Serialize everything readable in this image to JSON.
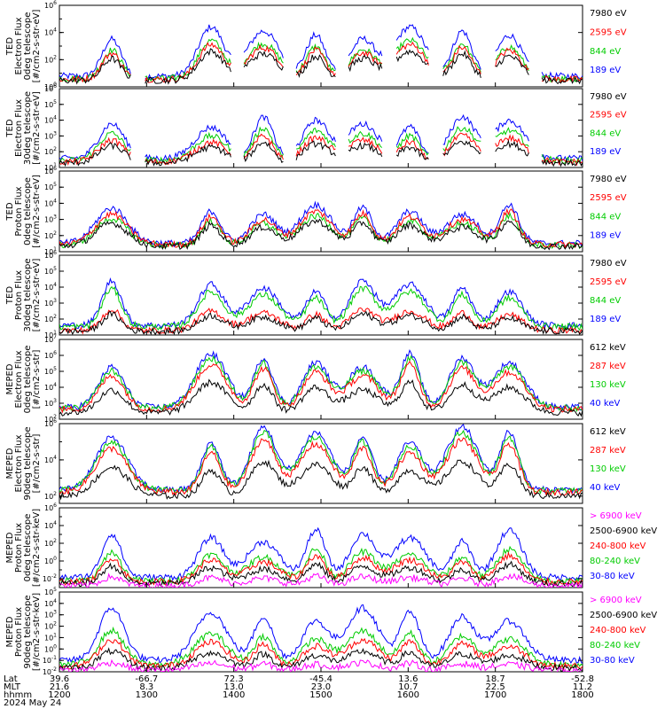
{
  "chart_data": {
    "type": "line",
    "colors": {
      "black": "#000000",
      "red": "#ff0000",
      "green": "#00cc00",
      "blue": "#0000ff",
      "magenta": "#ff00ff"
    },
    "panels": [
      {
        "ylabel_lines": [
          "TED",
          "Electron Flux",
          "0deg telescope",
          "[#/cm2-s-str-eV]"
        ],
        "ylim_log10": [
          0,
          6
        ],
        "ticks": [
          "10^0",
          "10^2",
          "10^4",
          "10^6"
        ],
        "legend": [
          {
            "name": "7980 eV",
            "color": "black"
          },
          {
            "name": "2595 eV",
            "color": "red"
          },
          {
            "name": "844 eV",
            "color": "green"
          },
          {
            "name": "189 eV",
            "color": "blue"
          }
        ],
        "series_peaks_log10": [
          2.6,
          3.1,
          3.4,
          4.4
        ]
      },
      {
        "ylabel_lines": [
          "TED",
          "Electron Flux",
          "30deg telescope",
          "[#/cm2-s-str-eV]"
        ],
        "ylim_log10": [
          1,
          6
        ],
        "ticks": [
          "10^1",
          "10^2",
          "10^3",
          "10^4",
          "10^5",
          "10^6"
        ],
        "legend": [
          {
            "name": "7980 eV",
            "color": "black"
          },
          {
            "name": "2595 eV",
            "color": "red"
          },
          {
            "name": "844 eV",
            "color": "green"
          },
          {
            "name": "189 eV",
            "color": "blue"
          }
        ],
        "series_peaks_log10": [
          2.6,
          3.0,
          3.5,
          4.2
        ]
      },
      {
        "ylabel_lines": [
          "TED",
          "Proton Flux",
          "0deg telescope",
          "[#/cm2-s-str-eV]"
        ],
        "ylim_log10": [
          1,
          6
        ],
        "ticks": [
          "10^1",
          "10^2",
          "10^3",
          "10^4",
          "10^5",
          "10^6"
        ],
        "legend": [
          {
            "name": "7980 eV",
            "color": "black"
          },
          {
            "name": "2595 eV",
            "color": "red"
          },
          {
            "name": "844 eV",
            "color": "green"
          },
          {
            "name": "189 eV",
            "color": "blue"
          }
        ],
        "series_peaks_log10": [
          2.9,
          3.5,
          3.2,
          3.9
        ]
      },
      {
        "ylabel_lines": [
          "TED",
          "Proton Flux",
          "30deg telescope",
          "[#/cm2-s-str-eV]"
        ],
        "ylim_log10": [
          1,
          6
        ],
        "ticks": [
          "10^1",
          "10^2",
          "10^3",
          "10^4",
          "10^5",
          "10^6"
        ],
        "legend": [
          {
            "name": "7980 eV",
            "color": "black"
          },
          {
            "name": "2595 eV",
            "color": "red"
          },
          {
            "name": "844 eV",
            "color": "green"
          },
          {
            "name": "189 eV",
            "color": "blue"
          }
        ],
        "series_peaks_log10": [
          2.3,
          2.6,
          3.9,
          4.4
        ]
      },
      {
        "ylabel_lines": [
          "MEPED",
          "Electron Flux",
          "0deg telescope",
          "[#/cm2-s-str]"
        ],
        "ylim_log10": [
          2,
          7
        ],
        "ticks": [
          "10^2",
          "10^3",
          "10^4",
          "10^5",
          "10^6",
          "10^7"
        ],
        "legend": [
          {
            "name": "612 keV",
            "color": "black"
          },
          {
            "name": "287 keV",
            "color": "red"
          },
          {
            "name": "130 keV",
            "color": "green"
          },
          {
            "name": "40 keV",
            "color": "blue"
          }
        ],
        "series_peaks_log10": [
          4.3,
          5.4,
          5.8,
          6.1
        ]
      },
      {
        "ylabel_lines": [
          "MEPED",
          "Electron Flux",
          "90deg telescope",
          "[#/cm2-s-str]"
        ],
        "ylim_log10": [
          1.6,
          6
        ],
        "ticks": [
          "10^2",
          "10^4",
          "10^6"
        ],
        "legend": [
          {
            "name": "612 keV",
            "color": "black"
          },
          {
            "name": "287 keV",
            "color": "red"
          },
          {
            "name": "130 keV",
            "color": "green"
          },
          {
            "name": "40 keV",
            "color": "blue"
          }
        ],
        "series_peaks_log10": [
          3.9,
          5.1,
          5.5,
          5.8
        ]
      },
      {
        "ylabel_lines": [
          "MEPED",
          "Proton Flux",
          "0deg telescope",
          "[#/cm2-s-str-keV]"
        ],
        "ylim_log10": [
          -3,
          6
        ],
        "ticks": [
          "10^-2",
          "10^0",
          "10^2",
          "10^4",
          "10^6"
        ],
        "legend": [
          {
            "name": "> 6900 keV",
            "color": "magenta"
          },
          {
            "name": "2500-6900 keV",
            "color": "black"
          },
          {
            "name": "240-800 keV",
            "color": "red"
          },
          {
            "name": "80-240 keV",
            "color": "green"
          },
          {
            "name": "30-80 keV",
            "color": "blue"
          }
        ],
        "series_peaks_log10": [
          -1.7,
          -0.4,
          0.6,
          1.3,
          3.5
        ]
      },
      {
        "ylabel_lines": [
          "MEPED",
          "Proton Flux",
          "90deg telescope",
          "[#/cm2-s-str-keV]"
        ],
        "ylim_log10": [
          -2,
          5
        ],
        "ticks": [
          "10^-2",
          "10^-1",
          "10^0",
          "10^1",
          "10^2",
          "10^3",
          "10^4",
          "10^5"
        ],
        "legend": [
          {
            "name": "> 6900 keV",
            "color": "magenta"
          },
          {
            "name": "2500-6900 keV",
            "color": "black"
          },
          {
            "name": "240-800 keV",
            "color": "red"
          },
          {
            "name": "80-240 keV",
            "color": "green"
          },
          {
            "name": "30-80 keV",
            "color": "blue"
          }
        ],
        "series_peaks_log10": [
          -1.2,
          -0.2,
          0.8,
          1.6,
          3.6
        ]
      }
    ],
    "x_axis": {
      "row_labels": [
        "Lat",
        "MLT",
        "hhmm",
        "2024 May 24"
      ],
      "ticks": [
        {
          "hhmm": "1200",
          "lat": "39.6",
          "mlt": "21.6"
        },
        {
          "hhmm": "1300",
          "lat": "-66.7",
          "mlt": "8.3"
        },
        {
          "hhmm": "1400",
          "lat": "72.3",
          "mlt": "13.0"
        },
        {
          "hhmm": "1500",
          "lat": "-45.4",
          "mlt": "23.0"
        },
        {
          "hhmm": "1600",
          "lat": "13.6",
          "mlt": "10.7"
        },
        {
          "hhmm": "1700",
          "lat": "18.7",
          "mlt": "22.5"
        },
        {
          "hhmm": "1800",
          "lat": "-52.8",
          "mlt": "11.2"
        }
      ],
      "xlim_hhmm": [
        "1200",
        "1800"
      ]
    }
  }
}
